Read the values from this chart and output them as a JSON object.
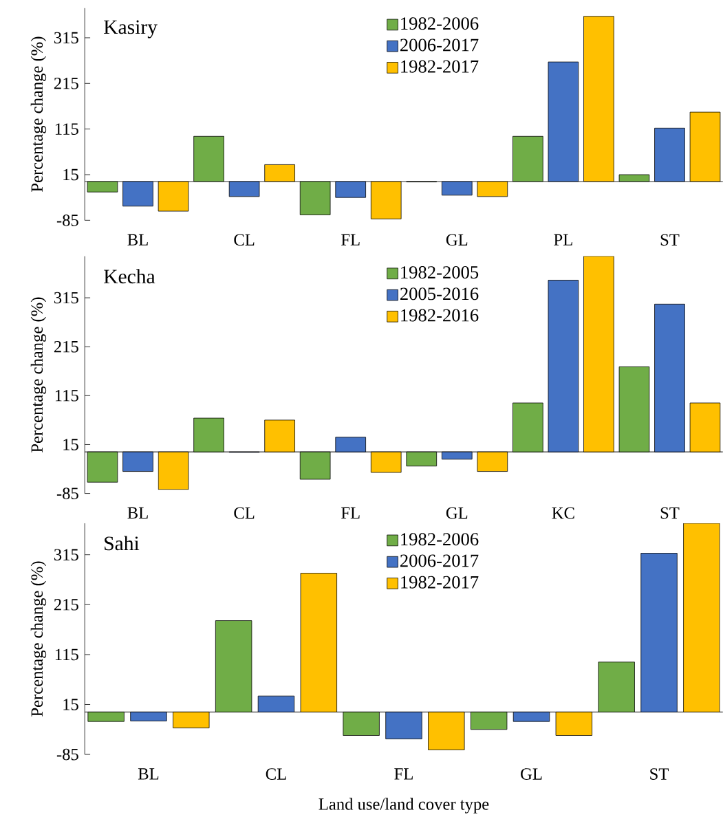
{
  "chart_data": [
    {
      "type": "bar",
      "title": "Kasiry",
      "ylabel": "Percentage change (%)",
      "categories": [
        "BL",
        "CL",
        "FL",
        "GL",
        "PL",
        "ST"
      ],
      "ylim": [
        -85,
        380
      ],
      "yticks": [
        -85,
        15,
        115,
        215,
        315
      ],
      "legend": "top",
      "series": [
        {
          "name": "1982-2006",
          "color": "#70ad47",
          "values": [
            -23,
            99,
            -73,
            -1,
            99,
            15
          ]
        },
        {
          "name": "2006-2017",
          "color": "#4472c4",
          "values": [
            -54,
            -33,
            -35,
            -30,
            262,
            117
          ]
        },
        {
          "name": "1982-2017",
          "color": "#ffc000",
          "values": [
            -65,
            37,
            -82,
            -33,
            362,
            152
          ]
        }
      ]
    },
    {
      "type": "bar",
      "title": "Kecha",
      "ylabel": "Percentage change (%)",
      "categories": [
        "BL",
        "CL",
        "FL",
        "GL",
        "KC",
        "ST"
      ],
      "ylim": [
        -85,
        400
      ],
      "yticks": [
        -85,
        15,
        115,
        215,
        315
      ],
      "legend": "top",
      "series": [
        {
          "name": "1982-2005",
          "color": "#70ad47",
          "values": [
            -62,
            69,
            -56,
            -29,
            100,
            174
          ]
        },
        {
          "name": "2005-2016",
          "color": "#4472c4",
          "values": [
            -40,
            -1,
            30,
            -15,
            351,
            302
          ]
        },
        {
          "name": "1982-2016",
          "color": "#ffc000",
          "values": [
            -77,
            65,
            -42,
            -40,
            400,
            100
          ]
        }
      ]
    },
    {
      "type": "bar",
      "title": "Sahi",
      "ylabel": "Percentage change (%)",
      "xlabel": "Land use/land cover type",
      "categories": [
        "BL",
        "CL",
        "FL",
        "GL",
        "ST"
      ],
      "ylim": [
        -85,
        378
      ],
      "yticks": [
        -85,
        15,
        115,
        215,
        315
      ],
      "legend": "top",
      "series": [
        {
          "name": "1982-2006",
          "color": "#70ad47",
          "values": [
            -19,
            183,
            -47,
            -35,
            100
          ]
        },
        {
          "name": "2006-2017",
          "color": "#4472c4",
          "values": [
            -18,
            32,
            -54,
            -19,
            318
          ]
        },
        {
          "name": "1982-2017",
          "color": "#ffc000",
          "values": [
            -32,
            278,
            -76,
            -47,
            378
          ]
        }
      ]
    }
  ]
}
